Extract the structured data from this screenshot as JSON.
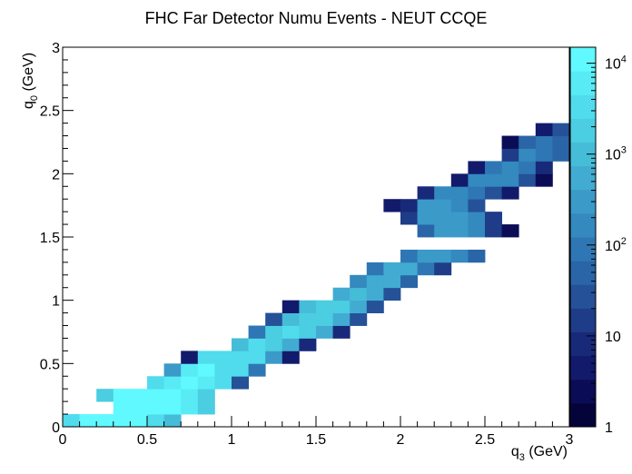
{
  "chart_data": {
    "type": "heatmap",
    "title": "FHC Far Detector Numu Events - NEUT CCQE",
    "xlabel": "q",
    "xlabel_sub": "3",
    "xlabel_unit": " (GeV)",
    "ylabel": "q",
    "ylabel_sub": "0",
    "ylabel_unit": " (GeV)",
    "xlim": [
      0,
      3
    ],
    "ylim": [
      0,
      3
    ],
    "bins": [
      30,
      30
    ],
    "x_ticks": [
      {
        "v": 0,
        "label": "0"
      },
      {
        "v": 0.5,
        "label": "0.5"
      },
      {
        "v": 1,
        "label": "1"
      },
      {
        "v": 1.5,
        "label": "1.5"
      },
      {
        "v": 2,
        "label": "2"
      },
      {
        "v": 2.5,
        "label": "2.5"
      },
      {
        "v": 3,
        "label": "3"
      }
    ],
    "y_ticks": [
      {
        "v": 0,
        "label": "0"
      },
      {
        "v": 0.5,
        "label": "0.5"
      },
      {
        "v": 1,
        "label": "1"
      },
      {
        "v": 1.5,
        "label": "1.5"
      },
      {
        "v": 2,
        "label": "2"
      },
      {
        "v": 2.5,
        "label": "2.5"
      },
      {
        "v": 3,
        "label": "3"
      }
    ],
    "colorbar": {
      "scale": "log",
      "range": [
        1,
        15000
      ],
      "ticks": [
        {
          "v": 1,
          "label": "1"
        },
        {
          "v": 10,
          "label": "10"
        },
        {
          "v": 100,
          "label": "10",
          "exp": "2"
        },
        {
          "v": 1000,
          "label": "10",
          "exp": "3"
        },
        {
          "v": 10000,
          "label": "10",
          "exp": "4"
        }
      ],
      "palette": [
        "#04043b",
        "#0b0c56",
        "#121a6b",
        "#19297a",
        "#1e3c88",
        "#255198",
        "#2a65a8",
        "#2f77b4",
        "#3489bf",
        "#3b9ac8",
        "#42abd1",
        "#46bdd8",
        "#4bcde2",
        "#50dced",
        "#58ebf6",
        "#60f9ff"
      ]
    },
    "bins_filled": [
      {
        "x": 0.05,
        "y": 0.05,
        "z": 2500
      },
      {
        "x": 0.15,
        "y": 0.05,
        "z": 12000
      },
      {
        "x": 0.25,
        "y": 0.05,
        "z": 15000
      },
      {
        "x": 0.35,
        "y": 0.05,
        "z": 15000
      },
      {
        "x": 0.45,
        "y": 0.05,
        "z": 12000
      },
      {
        "x": 0.55,
        "y": 0.05,
        "z": 4000
      },
      {
        "x": 0.65,
        "y": 0.05,
        "z": 1200
      },
      {
        "x": 0.35,
        "y": 0.15,
        "z": 13000
      },
      {
        "x": 0.45,
        "y": 0.15,
        "z": 15000
      },
      {
        "x": 0.55,
        "y": 0.15,
        "z": 15000
      },
      {
        "x": 0.65,
        "y": 0.15,
        "z": 15000
      },
      {
        "x": 0.75,
        "y": 0.15,
        "z": 6000
      },
      {
        "x": 0.85,
        "y": 0.15,
        "z": 1500
      },
      {
        "x": 0.25,
        "y": 0.25,
        "z": 2000
      },
      {
        "x": 0.35,
        "y": 0.25,
        "z": 13000
      },
      {
        "x": 0.45,
        "y": 0.25,
        "z": 15000
      },
      {
        "x": 0.55,
        "y": 0.25,
        "z": 15000
      },
      {
        "x": 0.65,
        "y": 0.25,
        "z": 15000
      },
      {
        "x": 0.75,
        "y": 0.25,
        "z": 6000
      },
      {
        "x": 0.85,
        "y": 0.25,
        "z": 1500
      },
      {
        "x": 0.55,
        "y": 0.35,
        "z": 2500
      },
      {
        "x": 0.65,
        "y": 0.35,
        "z": 8000
      },
      {
        "x": 0.75,
        "y": 0.35,
        "z": 15000
      },
      {
        "x": 0.85,
        "y": 0.35,
        "z": 6000
      },
      {
        "x": 0.95,
        "y": 0.35,
        "z": 2500
      },
      {
        "x": 1.05,
        "y": 0.35,
        "z": 25
      },
      {
        "x": 0.65,
        "y": 0.45,
        "z": 250
      },
      {
        "x": 0.75,
        "y": 0.45,
        "z": 6000
      },
      {
        "x": 0.85,
        "y": 0.45,
        "z": 10000
      },
      {
        "x": 0.95,
        "y": 0.45,
        "z": 4000
      },
      {
        "x": 1.05,
        "y": 0.45,
        "z": 2500
      },
      {
        "x": 1.15,
        "y": 0.45,
        "z": 100
      },
      {
        "x": 0.75,
        "y": 0.55,
        "z": 5
      },
      {
        "x": 0.85,
        "y": 0.55,
        "z": 2500
      },
      {
        "x": 0.95,
        "y": 0.55,
        "z": 4000
      },
      {
        "x": 1.05,
        "y": 0.55,
        "z": 4000
      },
      {
        "x": 1.15,
        "y": 0.55,
        "z": 2500
      },
      {
        "x": 1.25,
        "y": 0.55,
        "z": 300
      },
      {
        "x": 1.35,
        "y": 0.55,
        "z": 4
      },
      {
        "x": 1.05,
        "y": 0.65,
        "z": 1000
      },
      {
        "x": 1.15,
        "y": 0.65,
        "z": 2500
      },
      {
        "x": 1.25,
        "y": 0.65,
        "z": 2000
      },
      {
        "x": 1.35,
        "y": 0.65,
        "z": 700
      },
      {
        "x": 1.45,
        "y": 0.65,
        "z": 10
      },
      {
        "x": 1.15,
        "y": 0.75,
        "z": 100
      },
      {
        "x": 1.25,
        "y": 0.75,
        "z": 1500
      },
      {
        "x": 1.35,
        "y": 0.75,
        "z": 2500
      },
      {
        "x": 1.45,
        "y": 0.75,
        "z": 2000
      },
      {
        "x": 1.55,
        "y": 0.75,
        "z": 700
      },
      {
        "x": 1.65,
        "y": 0.75,
        "z": 10
      },
      {
        "x": 1.25,
        "y": 0.85,
        "z": 30
      },
      {
        "x": 1.35,
        "y": 0.85,
        "z": 1200
      },
      {
        "x": 1.45,
        "y": 0.85,
        "z": 2000
      },
      {
        "x": 1.55,
        "y": 0.85,
        "z": 2000
      },
      {
        "x": 1.65,
        "y": 0.85,
        "z": 700
      },
      {
        "x": 1.75,
        "y": 0.85,
        "z": 30
      },
      {
        "x": 1.35,
        "y": 0.95,
        "z": 6
      },
      {
        "x": 1.45,
        "y": 0.95,
        "z": 800
      },
      {
        "x": 1.55,
        "y": 0.95,
        "z": 1500
      },
      {
        "x": 1.65,
        "y": 0.95,
        "z": 1500
      },
      {
        "x": 1.75,
        "y": 0.95,
        "z": 700
      },
      {
        "x": 1.85,
        "y": 0.95,
        "z": 25
      },
      {
        "x": 1.65,
        "y": 1.05,
        "z": 500
      },
      {
        "x": 1.75,
        "y": 1.05,
        "z": 1000
      },
      {
        "x": 1.85,
        "y": 1.05,
        "z": 700
      },
      {
        "x": 1.95,
        "y": 1.05,
        "z": 30
      },
      {
        "x": 1.75,
        "y": 1.15,
        "z": 150
      },
      {
        "x": 1.85,
        "y": 1.15,
        "z": 700
      },
      {
        "x": 1.95,
        "y": 1.15,
        "z": 700
      },
      {
        "x": 2.05,
        "y": 1.15,
        "z": 40
      },
      {
        "x": 1.85,
        "y": 1.25,
        "z": 100
      },
      {
        "x": 1.95,
        "y": 1.25,
        "z": 700
      },
      {
        "x": 2.05,
        "y": 1.25,
        "z": 500
      },
      {
        "x": 2.15,
        "y": 1.25,
        "z": 80
      },
      {
        "x": 2.25,
        "y": 1.25,
        "z": 20
      },
      {
        "x": 2.05,
        "y": 1.35,
        "z": 80
      },
      {
        "x": 2.15,
        "y": 1.35,
        "z": 250
      },
      {
        "x": 2.25,
        "y": 1.35,
        "z": 300
      },
      {
        "x": 2.35,
        "y": 1.35,
        "z": 150
      },
      {
        "x": 2.45,
        "y": 1.35,
        "z": 40
      },
      {
        "x": 2.15,
        "y": 1.55,
        "z": 50
      },
      {
        "x": 2.25,
        "y": 1.55,
        "z": 250
      },
      {
        "x": 2.35,
        "y": 1.55,
        "z": 300
      },
      {
        "x": 2.45,
        "y": 1.55,
        "z": 150
      },
      {
        "x": 2.55,
        "y": 1.55,
        "z": 20
      },
      {
        "x": 2.65,
        "y": 1.55,
        "z": 3
      },
      {
        "x": 2.05,
        "y": 1.65,
        "z": 20
      },
      {
        "x": 2.15,
        "y": 1.65,
        "z": 300
      },
      {
        "x": 2.25,
        "y": 1.65,
        "z": 400
      },
      {
        "x": 2.35,
        "y": 1.65,
        "z": 400
      },
      {
        "x": 2.45,
        "y": 1.65,
        "z": 150
      },
      {
        "x": 2.55,
        "y": 1.65,
        "z": 15
      },
      {
        "x": 1.95,
        "y": 1.75,
        "z": 5
      },
      {
        "x": 2.05,
        "y": 1.75,
        "z": 10
      },
      {
        "x": 2.15,
        "y": 1.75,
        "z": 300
      },
      {
        "x": 2.25,
        "y": 1.75,
        "z": 300
      },
      {
        "x": 2.35,
        "y": 1.75,
        "z": 200
      },
      {
        "x": 2.45,
        "y": 1.75,
        "z": 30
      },
      {
        "x": 2.15,
        "y": 1.85,
        "z": 8
      },
      {
        "x": 2.25,
        "y": 1.85,
        "z": 200
      },
      {
        "x": 2.35,
        "y": 1.85,
        "z": 200
      },
      {
        "x": 2.45,
        "y": 1.85,
        "z": 100
      },
      {
        "x": 2.55,
        "y": 1.85,
        "z": 30
      },
      {
        "x": 2.65,
        "y": 1.85,
        "z": 4
      },
      {
        "x": 2.35,
        "y": 1.95,
        "z": 6
      },
      {
        "x": 2.45,
        "y": 1.95,
        "z": 150
      },
      {
        "x": 2.55,
        "y": 1.95,
        "z": 200
      },
      {
        "x": 2.65,
        "y": 1.95,
        "z": 150
      },
      {
        "x": 2.75,
        "y": 1.95,
        "z": 30
      },
      {
        "x": 2.85,
        "y": 1.95,
        "z": 3
      },
      {
        "x": 2.45,
        "y": 2.05,
        "z": 5
      },
      {
        "x": 2.55,
        "y": 2.05,
        "z": 80
      },
      {
        "x": 2.65,
        "y": 2.05,
        "z": 200
      },
      {
        "x": 2.75,
        "y": 2.05,
        "z": 100
      },
      {
        "x": 2.85,
        "y": 2.05,
        "z": 8
      },
      {
        "x": 2.65,
        "y": 2.15,
        "z": 20
      },
      {
        "x": 2.75,
        "y": 2.15,
        "z": 150
      },
      {
        "x": 2.85,
        "y": 2.15,
        "z": 100
      },
      {
        "x": 2.95,
        "y": 2.15,
        "z": 40
      },
      {
        "x": 2.65,
        "y": 2.25,
        "z": 3
      },
      {
        "x": 2.75,
        "y": 2.25,
        "z": 40
      },
      {
        "x": 2.85,
        "y": 2.25,
        "z": 100
      },
      {
        "x": 2.95,
        "y": 2.25,
        "z": 60
      },
      {
        "x": 2.85,
        "y": 2.35,
        "z": 4
      },
      {
        "x": 2.95,
        "y": 2.35,
        "z": 30
      }
    ]
  }
}
